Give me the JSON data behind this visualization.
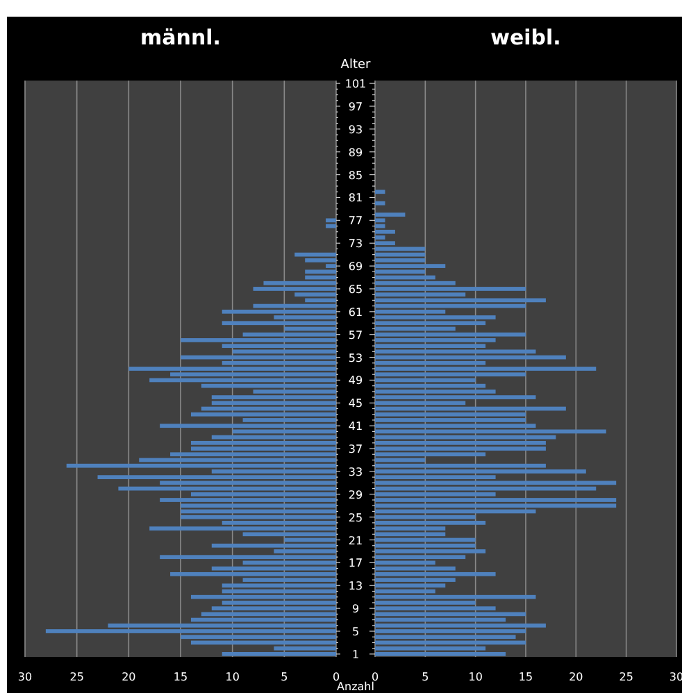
{
  "chart_data": [
    {
      "type": "bar",
      "orientation": "horizontal",
      "title": "männl.",
      "xlabel": "Anzahl",
      "tick_labels": "x",
      "grid": "x",
      "xlim": [
        30,
        0
      ],
      "xticks": [
        30,
        25,
        20,
        15,
        10,
        5,
        0
      ],
      "categories": [
        "101",
        null,
        null,
        null,
        "97",
        null,
        null,
        null,
        "93",
        null,
        null,
        null,
        "89",
        null,
        null,
        null,
        "85",
        null,
        null,
        null,
        "81",
        null,
        null,
        null,
        "77",
        null,
        null,
        null,
        "73",
        null,
        null,
        null,
        "69",
        null,
        null,
        null,
        "65",
        null,
        null,
        null,
        "61",
        null,
        null,
        null,
        "57",
        null,
        null,
        null,
        "53",
        null,
        null,
        null,
        "49",
        null,
        null,
        null,
        "45",
        null,
        null,
        null,
        "41",
        null,
        null,
        null,
        "37",
        null,
        null,
        null,
        "33",
        null,
        null,
        null,
        "29",
        null,
        null,
        null,
        "25",
        null,
        null,
        null,
        "21",
        null,
        null,
        null,
        "17",
        null,
        null,
        null,
        "13",
        null,
        null,
        null,
        "9",
        null,
        null,
        null,
        "5",
        null,
        null,
        null,
        "1"
      ],
      "color": "#4f81bd",
      "values": [
        0,
        0,
        0,
        0,
        0,
        0,
        0,
        0,
        0,
        0,
        0,
        0,
        0,
        0,
        0,
        0,
        0,
        0,
        0,
        0,
        0,
        0,
        0,
        0,
        1,
        1,
        0,
        0,
        0,
        0,
        4,
        3,
        1,
        3,
        3,
        7,
        8,
        4,
        3,
        8,
        11,
        6,
        11,
        5,
        9,
        15,
        11,
        10,
        15,
        11,
        20,
        16,
        18,
        13,
        8,
        12,
        12,
        13,
        14,
        9,
        17,
        10,
        12,
        14,
        14,
        16,
        19,
        26,
        12,
        23,
        17,
        21,
        14,
        17,
        15,
        15,
        15,
        11,
        18,
        9,
        5,
        12,
        6,
        17,
        9,
        12,
        16,
        9,
        11,
        11,
        14,
        11,
        12,
        13,
        14,
        22,
        28,
        15,
        14,
        6,
        11
      ]
    },
    {
      "type": "bar",
      "orientation": "horizontal",
      "title": "weibl.",
      "ylabel": "Alter",
      "grid": "x",
      "xlim": [
        0,
        30
      ],
      "xticks": [
        0,
        5,
        10,
        15,
        20,
        25,
        30
      ],
      "categories": [
        "101",
        null,
        null,
        null,
        "97",
        null,
        null,
        null,
        "93",
        null,
        null,
        null,
        "89",
        null,
        null,
        null,
        "85",
        null,
        null,
        null,
        "81",
        null,
        null,
        null,
        "77",
        null,
        null,
        null,
        "73",
        null,
        null,
        null,
        "69",
        null,
        null,
        null,
        "65",
        null,
        null,
        null,
        "61",
        null,
        null,
        null,
        "57",
        null,
        null,
        null,
        "53",
        null,
        null,
        null,
        "49",
        null,
        null,
        null,
        "45",
        null,
        null,
        null,
        "41",
        null,
        null,
        null,
        "37",
        null,
        null,
        null,
        "33",
        null,
        null,
        null,
        "29",
        null,
        null,
        null,
        "25",
        null,
        null,
        null,
        "21",
        null,
        null,
        null,
        "17",
        null,
        null,
        null,
        "13",
        null,
        null,
        null,
        "9",
        null,
        null,
        null,
        "5",
        null,
        null,
        null,
        "1"
      ],
      "color": "#4f81bd",
      "values": [
        0,
        0,
        0,
        0,
        0,
        0,
        0,
        0,
        0,
        0,
        0,
        0,
        0,
        0,
        0,
        0,
        0,
        0,
        0,
        1,
        0,
        1,
        0,
        3,
        1,
        1,
        2,
        1,
        2,
        5,
        5,
        5,
        7,
        5,
        6,
        8,
        15,
        9,
        17,
        15,
        7,
        12,
        11,
        8,
        15,
        12,
        11,
        16,
        19,
        11,
        22,
        15,
        10,
        11,
        12,
        16,
        9,
        19,
        15,
        15,
        16,
        23,
        18,
        17,
        17,
        11,
        5,
        17,
        21,
        12,
        24,
        22,
        12,
        24,
        24,
        16,
        10,
        11,
        7,
        7,
        10,
        10,
        11,
        9,
        6,
        8,
        12,
        8,
        7,
        6,
        16,
        10,
        12,
        15,
        13,
        17,
        15,
        14,
        15,
        11,
        13
      ]
    }
  ]
}
